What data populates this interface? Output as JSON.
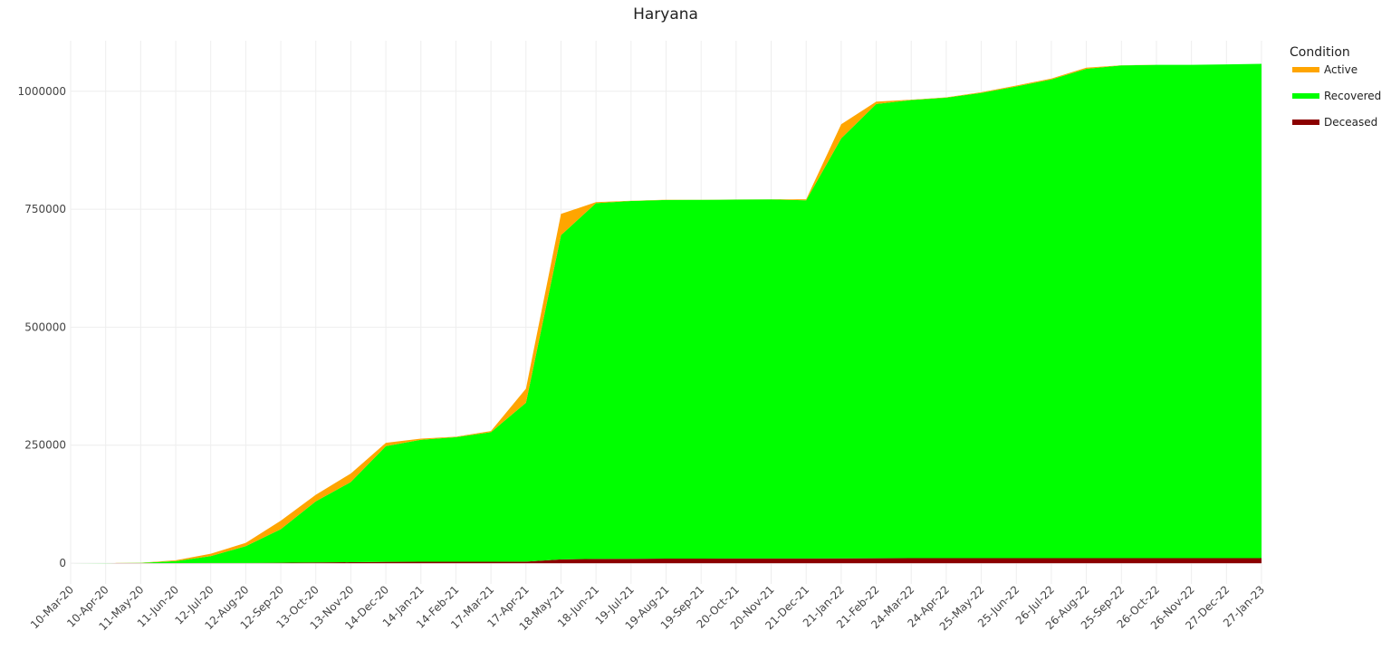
{
  "chart_data": {
    "type": "stacked-area",
    "title": "Haryana",
    "legend_title": "Condition",
    "legend_position": "top-right",
    "grid": true,
    "categories": [
      "10-Mar-20",
      "10-Apr-20",
      "11-May-20",
      "11-Jun-20",
      "12-Jul-20",
      "12-Aug-20",
      "12-Sep-20",
      "13-Oct-20",
      "13-Nov-20",
      "14-Dec-20",
      "14-Jan-21",
      "14-Feb-21",
      "17-Mar-21",
      "17-Apr-21",
      "18-May-21",
      "18-Jun-21",
      "19-Jul-21",
      "19-Aug-21",
      "19-Sep-21",
      "20-Oct-21",
      "20-Nov-21",
      "21-Dec-21",
      "21-Jan-22",
      "21-Feb-22",
      "24-Mar-22",
      "24-Apr-22",
      "25-May-22",
      "25-Jun-22",
      "26-Jul-22",
      "26-Aug-22",
      "25-Sep-22",
      "26-Oct-22",
      "26-Nov-22",
      "27-Dec-22",
      "27-Jan-23"
    ],
    "series": [
      {
        "name": "Active",
        "color": "#ffa500",
        "values": [
          0,
          150,
          300,
          1500,
          5000,
          7000,
          18000,
          14000,
          18000,
          7000,
          2500,
          1000,
          2500,
          30000,
          45000,
          2000,
          500,
          300,
          150,
          150,
          150,
          2000,
          30000,
          5000,
          600,
          700,
          1500,
          1800,
          2000,
          2500,
          300,
          100,
          50,
          40,
          30
        ]
      },
      {
        "name": "Recovered",
        "color": "#00ff00",
        "values": [
          0,
          50,
          490,
          4420,
          14700,
          35520,
          71100,
          129500,
          170000,
          245300,
          258500,
          263950,
          274400,
          336700,
          687000,
          754000,
          758200,
          760000,
          760050,
          760500,
          760950,
          758950,
          889900,
          962500,
          970800,
          975700,
          985880,
          999570,
          1014350,
          1036800,
          1044000,
          1045190,
          1045240,
          1046250,
          1047258
        ]
      },
      {
        "name": "Deceased",
        "color": "#8b0000",
        "values": [
          0,
          0,
          10,
          80,
          300,
          480,
          900,
          1500,
          2000,
          2700,
          3000,
          3050,
          3100,
          3300,
          8000,
          9000,
          9300,
          9700,
          9800,
          9850,
          9900,
          10050,
          10100,
          10500,
          10600,
          10600,
          10620,
          10630,
          10650,
          10700,
          10700,
          10710,
          10710,
          10710,
          10712
        ]
      }
    ],
    "ylim": [
      -44000,
      1107000
    ],
    "yticks": [
      0,
      250000,
      500000,
      750000,
      1000000
    ]
  }
}
